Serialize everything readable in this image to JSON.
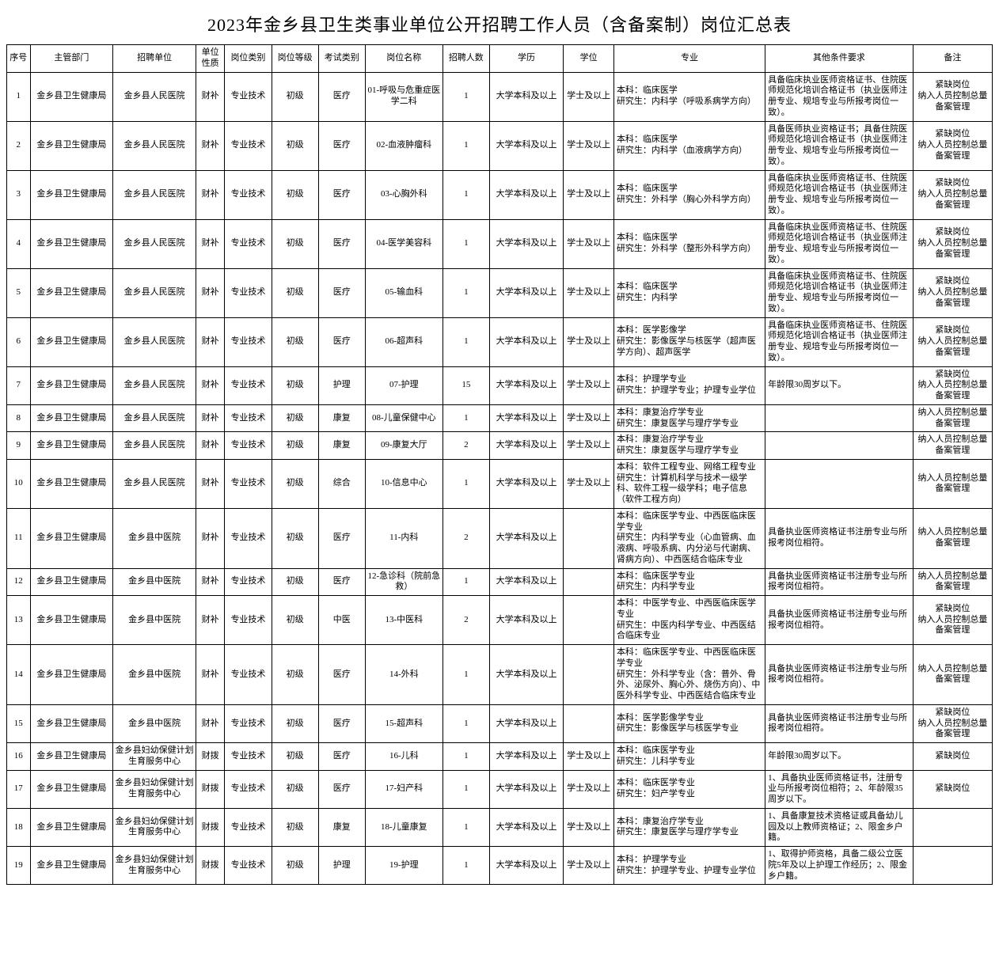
{
  "title": "2023年金乡县卫生类事业单位公开招聘工作人员（含备案制）岗位汇总表",
  "headers": {
    "seq": "序号",
    "dept": "主管部门",
    "unit": "招聘单位",
    "nature": "单位性质",
    "category": "岗位类别",
    "level": "岗位等级",
    "exam": "考试类别",
    "position": "岗位名称",
    "count": "招聘人数",
    "education": "学历",
    "degree": "学位",
    "major": "专业",
    "other": "其他条件要求",
    "note": "备注"
  },
  "rows": [
    {
      "seq": "1",
      "dept": "金乡县卫生健康局",
      "unit": "金乡县人民医院",
      "nature": "财补",
      "category": "专业技术",
      "level": "初级",
      "exam": "医疗",
      "position": "01-呼吸与危重症医学二科",
      "count": "1",
      "education": "大学本科及以上",
      "degree": "学士及以上",
      "major": "本科：临床医学\n研究生：内科学（呼吸系病学方向）",
      "other": "具备临床执业医师资格证书、住院医师规范化培训合格证书（执业医师注册专业、规培专业与所报考岗位一致）。",
      "note": "紧缺岗位\n纳入人员控制总量备案管理"
    },
    {
      "seq": "2",
      "dept": "金乡县卫生健康局",
      "unit": "金乡县人民医院",
      "nature": "财补",
      "category": "专业技术",
      "level": "初级",
      "exam": "医疗",
      "position": "02-血液肿瘤科",
      "count": "1",
      "education": "大学本科及以上",
      "degree": "学士及以上",
      "major": "本科：临床医学\n研究生：内科学（血液病学方向）",
      "other": "具备医师执业资格证书；具备住院医师规范化培训合格证书（执业医师注册专业、规培专业与所报考岗位一致）。",
      "note": "紧缺岗位\n纳入人员控制总量备案管理"
    },
    {
      "seq": "3",
      "dept": "金乡县卫生健康局",
      "unit": "金乡县人民医院",
      "nature": "财补",
      "category": "专业技术",
      "level": "初级",
      "exam": "医疗",
      "position": "03-心胸外科",
      "count": "1",
      "education": "大学本科及以上",
      "degree": "学士及以上",
      "major": "本科：临床医学\n研究生：外科学（胸心外科学方向）",
      "other": "具备临床执业医师资格证书、住院医师规范化培训合格证书（执业医师注册专业、规培专业与所报考岗位一致）。",
      "note": "紧缺岗位\n纳入人员控制总量备案管理"
    },
    {
      "seq": "4",
      "dept": "金乡县卫生健康局",
      "unit": "金乡县人民医院",
      "nature": "财补",
      "category": "专业技术",
      "level": "初级",
      "exam": "医疗",
      "position": "04-医学美容科",
      "count": "1",
      "education": "大学本科及以上",
      "degree": "学士及以上",
      "major": "本科：临床医学\n研究生：外科学（整形外科学方向）",
      "other": "具备临床执业医师资格证书、住院医师规范化培训合格证书（执业医师注册专业、规培专业与所报考岗位一致）。",
      "note": "紧缺岗位\n纳入人员控制总量备案管理"
    },
    {
      "seq": "5",
      "dept": "金乡县卫生健康局",
      "unit": "金乡县人民医院",
      "nature": "财补",
      "category": "专业技术",
      "level": "初级",
      "exam": "医疗",
      "position": "05-输血科",
      "count": "1",
      "education": "大学本科及以上",
      "degree": "学士及以上",
      "major": "本科：临床医学\n研究生：内科学",
      "other": "具备临床执业医师资格证书、住院医师规范化培训合格证书（执业医师注册专业、规培专业与所报考岗位一致）。",
      "note": "紧缺岗位\n纳入人员控制总量备案管理"
    },
    {
      "seq": "6",
      "dept": "金乡县卫生健康局",
      "unit": "金乡县人民医院",
      "nature": "财补",
      "category": "专业技术",
      "level": "初级",
      "exam": "医疗",
      "position": "06-超声科",
      "count": "1",
      "education": "大学本科及以上",
      "degree": "学士及以上",
      "major": "本科：医学影像学\n研究生：影像医学与核医学（超声医学方向）、超声医学",
      "other": "具备临床执业医师资格证书、住院医师规范化培训合格证书（执业医师注册专业、规培专业与所报考岗位一致）。",
      "note": "紧缺岗位\n纳入人员控制总量备案管理"
    },
    {
      "seq": "7",
      "dept": "金乡县卫生健康局",
      "unit": "金乡县人民医院",
      "nature": "财补",
      "category": "专业技术",
      "level": "初级",
      "exam": "护理",
      "position": "07-护理",
      "count": "15",
      "education": "大学本科及以上",
      "degree": "学士及以上",
      "major": "本科：护理学专业\n研究生：护理学专业；护理专业学位",
      "other": "年龄限30周岁以下。",
      "note": "紧缺岗位\n纳入人员控制总量备案管理"
    },
    {
      "seq": "8",
      "dept": "金乡县卫生健康局",
      "unit": "金乡县人民医院",
      "nature": "财补",
      "category": "专业技术",
      "level": "初级",
      "exam": "康复",
      "position": "08-儿童保健中心",
      "count": "1",
      "education": "大学本科及以上",
      "degree": "学士及以上",
      "major": "本科：康复治疗学专业\n研究生：康复医学与理疗学专业",
      "other": "",
      "note": "纳入人员控制总量备案管理"
    },
    {
      "seq": "9",
      "dept": "金乡县卫生健康局",
      "unit": "金乡县人民医院",
      "nature": "财补",
      "category": "专业技术",
      "level": "初级",
      "exam": "康复",
      "position": "09-康复大厅",
      "count": "2",
      "education": "大学本科及以上",
      "degree": "学士及以上",
      "major": "本科：康复治疗学专业\n研究生：康复医学与理疗学专业",
      "other": "",
      "note": "纳入人员控制总量备案管理"
    },
    {
      "seq": "10",
      "dept": "金乡县卫生健康局",
      "unit": "金乡县人民医院",
      "nature": "财补",
      "category": "专业技术",
      "level": "初级",
      "exam": "综合",
      "position": "10-信息中心",
      "count": "1",
      "education": "大学本科及以上",
      "degree": "学士及以上",
      "major": "本科：软件工程专业、网络工程专业\n研究生：计算机科学与技术一级学科、软件工程一级学科；电子信息（软件工程方向）",
      "other": "",
      "note": "纳入人员控制总量备案管理"
    },
    {
      "seq": "11",
      "dept": "金乡县卫生健康局",
      "unit": "金乡县中医院",
      "nature": "财补",
      "category": "专业技术",
      "level": "初级",
      "exam": "医疗",
      "position": "11-内科",
      "count": "2",
      "education": "大学本科及以上",
      "degree": "",
      "major": "本科：临床医学专业、中西医临床医学专业\n研究生：内科学专业（心血管病、血液病、呼吸系病、内分泌与代谢病、肾病方向）、中西医结合临床专业",
      "other": "具备执业医师资格证书注册专业与所报考岗位相符。",
      "note": "纳入人员控制总量备案管理"
    },
    {
      "seq": "12",
      "dept": "金乡县卫生健康局",
      "unit": "金乡县中医院",
      "nature": "财补",
      "category": "专业技术",
      "level": "初级",
      "exam": "医疗",
      "position": "12-急诊科（院前急救）",
      "count": "1",
      "education": "大学本科及以上",
      "degree": "",
      "major": "本科：临床医学专业\n研究生：内科学专业",
      "other": "具备执业医师资格证书注册专业与所报考岗位相符。",
      "note": "纳入人员控制总量备案管理"
    },
    {
      "seq": "13",
      "dept": "金乡县卫生健康局",
      "unit": "金乡县中医院",
      "nature": "财补",
      "category": "专业技术",
      "level": "初级",
      "exam": "中医",
      "position": "13-中医科",
      "count": "2",
      "education": "大学本科及以上",
      "degree": "",
      "major": "本科：中医学专业、中西医临床医学专业\n研究生：中医内科学专业、中西医结合临床专业",
      "other": "具备执业医师资格证书注册专业与所报考岗位相符。",
      "note": "紧缺岗位\n纳入人员控制总量备案管理"
    },
    {
      "seq": "14",
      "dept": "金乡县卫生健康局",
      "unit": "金乡县中医院",
      "nature": "财补",
      "category": "专业技术",
      "level": "初级",
      "exam": "医疗",
      "position": "14-外科",
      "count": "1",
      "education": "大学本科及以上",
      "degree": "",
      "major": "本科：临床医学专业、中西医临床医学专业\n研究生：外科学专业（含：普外、骨外、泌尿外、胸心外、烧伤方向）、中医外科学专业、中西医结合临床专业",
      "other": "具备执业医师资格证书注册专业与所报考岗位相符。",
      "note": "纳入人员控制总量备案管理"
    },
    {
      "seq": "15",
      "dept": "金乡县卫生健康局",
      "unit": "金乡县中医院",
      "nature": "财补",
      "category": "专业技术",
      "level": "初级",
      "exam": "医疗",
      "position": "15-超声科",
      "count": "1",
      "education": "大学本科及以上",
      "degree": "",
      "major": "本科：医学影像学专业\n研究生：影像医学与核医学专业",
      "other": "具备执业医师资格证书注册专业与所报考岗位相符。",
      "note": "紧缺岗位\n纳入人员控制总量备案管理"
    },
    {
      "seq": "16",
      "dept": "金乡县卫生健康局",
      "unit": "金乡县妇幼保健计划生育服务中心",
      "nature": "财拨",
      "category": "专业技术",
      "level": "初级",
      "exam": "医疗",
      "position": "16-儿科",
      "count": "1",
      "education": "大学本科及以上",
      "degree": "学士及以上",
      "major": "本科：临床医学专业\n研究生：儿科学专业",
      "other": "年龄限30周岁以下。",
      "note": "紧缺岗位"
    },
    {
      "seq": "17",
      "dept": "金乡县卫生健康局",
      "unit": "金乡县妇幼保健计划生育服务中心",
      "nature": "财拨",
      "category": "专业技术",
      "level": "初级",
      "exam": "医疗",
      "position": "17-妇产科",
      "count": "1",
      "education": "大学本科及以上",
      "degree": "学士及以上",
      "major": "本科：临床医学专业\n研究生：妇产学专业",
      "other": "1、具备执业医师资格证书，注册专业与所报考岗位相符；2、年龄限35周岁以下。",
      "note": "紧缺岗位"
    },
    {
      "seq": "18",
      "dept": "金乡县卫生健康局",
      "unit": "金乡县妇幼保健计划生育服务中心",
      "nature": "财拨",
      "category": "专业技术",
      "level": "初级",
      "exam": "康复",
      "position": "18-儿童康复",
      "count": "1",
      "education": "大学本科及以上",
      "degree": "学士及以上",
      "major": "本科：康复治疗学专业\n研究生：康复医学与理疗学专业",
      "other": "1、具备康复技术资格证或具备幼儿园及以上教师资格证；2、限金乡户籍。",
      "note": ""
    },
    {
      "seq": "19",
      "dept": "金乡县卫生健康局",
      "unit": "金乡县妇幼保健计划生育服务中心",
      "nature": "财拨",
      "category": "专业技术",
      "level": "初级",
      "exam": "护理",
      "position": "19-护理",
      "count": "1",
      "education": "大学本科及以上",
      "degree": "学士及以上",
      "major": "本科：护理学专业\n研究生：护理学专业、护理专业学位",
      "other": "1、取得护师资格，具备二级公立医院5年及以上护理工作经历；2、限金乡户籍。",
      "note": ""
    }
  ]
}
